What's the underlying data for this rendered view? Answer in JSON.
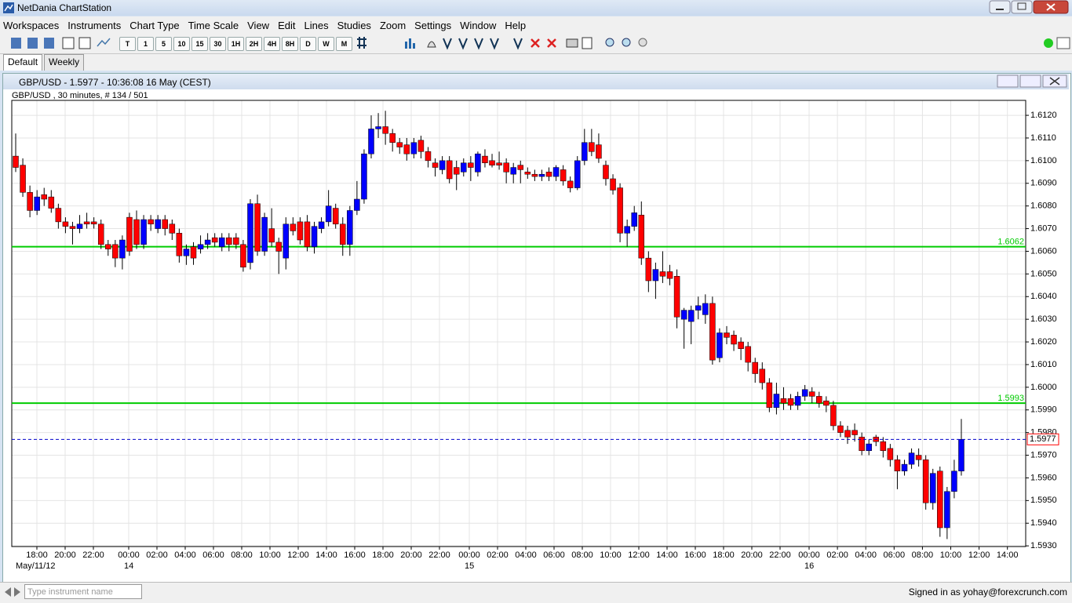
{
  "app": {
    "title": "NetDania ChartStation"
  },
  "menu": [
    "Workspaces",
    "Instruments",
    "Chart Type",
    "Time Scale",
    "View",
    "Edit",
    "Lines",
    "Studies",
    "Zoom",
    "Settings",
    "Window",
    "Help"
  ],
  "timeframes": [
    "T",
    "1",
    "5",
    "10",
    "15",
    "30",
    "1H",
    "2H",
    "4H",
    "8H",
    "D",
    "W",
    "M"
  ],
  "tabs": [
    "Default",
    "Weekly"
  ],
  "window_title": "GBP/USD - 1.5977 - 10:36:08  16 May (CEST)",
  "status": {
    "search_placeholder": "Type instrument name",
    "signed_in": "Signed in as yohay@forexcrunch.com"
  },
  "chart_data": {
    "type": "candlestick",
    "title": "GBP/USD , 30 minutes, # 134 / 501",
    "up_color": "#0000ff",
    "down_color": "#ff0000",
    "wick_color": "#000000",
    "grid": true,
    "ylim": [
      1.59297,
      1.61266
    ],
    "yticks": [
      {
        "value": 1.612,
        "label": "1.6120"
      },
      {
        "value": 1.611,
        "label": "1.6110"
      },
      {
        "value": 1.61,
        "label": "1.6100"
      },
      {
        "value": 1.609,
        "label": "1.6090"
      },
      {
        "value": 1.608,
        "label": "1.6080"
      },
      {
        "value": 1.607,
        "label": "1.6070"
      },
      {
        "value": 1.606,
        "label": "1.6060"
      },
      {
        "value": 1.605,
        "label": "1.6050"
      },
      {
        "value": 1.604,
        "label": "1.6040"
      },
      {
        "value": 1.603,
        "label": "1.6030"
      },
      {
        "value": 1.602,
        "label": "1.6020"
      },
      {
        "value": 1.601,
        "label": "1.6010"
      },
      {
        "value": 1.6,
        "label": "1.6000"
      },
      {
        "value": 1.599,
        "label": "1.5990"
      },
      {
        "value": 1.598,
        "label": "1.5980"
      },
      {
        "value": 1.597,
        "label": "1.5970"
      },
      {
        "value": 1.596,
        "label": "1.5960"
      },
      {
        "value": 1.595,
        "label": "1.5950"
      },
      {
        "value": 1.594,
        "label": "1.5940"
      },
      {
        "value": 1.593,
        "label": "1.5930"
      }
    ],
    "levels": [
      {
        "value": 1.6062,
        "color": "#00cc00"
      },
      {
        "value": 1.5993,
        "color": "#00cc00"
      }
    ],
    "last": {
      "value": 1.5977,
      "color": "#0000cc",
      "label_border": "#ff0000"
    },
    "time_labels": [
      "18:00",
      "20:00",
      "22:00",
      "00:00",
      "02:00",
      "04:00",
      "06:00",
      "08:00",
      "10:00",
      "12:00",
      "14:00",
      "16:00",
      "18:00",
      "20:00",
      "22:00",
      "00:00",
      "02:00",
      "04:00",
      "06:00",
      "08:00",
      "10:00",
      "12:00",
      "14:00",
      "16:00",
      "18:00",
      "20:00",
      "22:00",
      "00:00",
      "02:00",
      "04:00",
      "06:00",
      "08:00",
      "10:00",
      "12:00",
      "14:00"
    ],
    "date_labels": [
      "May/11/12",
      "14",
      "15",
      "16"
    ],
    "ohlc": [
      [
        1.6102,
        1.6112,
        1.6095,
        1.6097
      ],
      [
        1.6098,
        1.6101,
        1.6084,
        1.6086
      ],
      [
        1.6086,
        1.6089,
        1.6075,
        1.6078
      ],
      [
        1.6078,
        1.6087,
        1.6076,
        1.6084
      ],
      [
        1.6085,
        1.6088,
        1.608,
        1.6083
      ],
      [
        1.6084,
        1.6087,
        1.6077,
        1.6079
      ],
      [
        1.6079,
        1.6081,
        1.607,
        1.6073
      ],
      [
        1.6073,
        1.6075,
        1.6068,
        1.6071
      ],
      [
        1.6071,
        1.6073,
        1.6063,
        1.607
      ],
      [
        1.607,
        1.6076,
        1.6068,
        1.6072
      ],
      [
        1.6073,
        1.6077,
        1.607,
        1.6072
      ],
      [
        1.6073,
        1.6075,
        1.607,
        1.6072
      ],
      [
        1.6072,
        1.6074,
        1.6061,
        1.6063
      ],
      [
        1.6063,
        1.6065,
        1.6058,
        1.6061
      ],
      [
        1.6063,
        1.6065,
        1.6053,
        1.6057
      ],
      [
        1.6057,
        1.6067,
        1.6052,
        1.6065
      ],
      [
        1.6075,
        1.6077,
        1.6058,
        1.606
      ],
      [
        1.6074,
        1.6078,
        1.6061,
        1.6063
      ],
      [
        1.6063,
        1.6076,
        1.6061,
        1.6074
      ],
      [
        1.6074,
        1.6076,
        1.6069,
        1.6072
      ],
      [
        1.607,
        1.6076,
        1.6068,
        1.6074
      ],
      [
        1.6074,
        1.6076,
        1.6067,
        1.607
      ],
      [
        1.6072,
        1.6074,
        1.6065,
        1.6068
      ],
      [
        1.6068,
        1.607,
        1.6055,
        1.6058
      ],
      [
        1.6058,
        1.6063,
        1.6054,
        1.6061
      ],
      [
        1.6062,
        1.6064,
        1.6054,
        1.6057
      ],
      [
        1.6061,
        1.6067,
        1.6059,
        1.6063
      ],
      [
        1.6063,
        1.6068,
        1.6061,
        1.6065
      ],
      [
        1.6066,
        1.6068,
        1.6062,
        1.6064
      ],
      [
        1.6062,
        1.6068,
        1.606,
        1.6066
      ],
      [
        1.6066,
        1.6068,
        1.606,
        1.6063
      ],
      [
        1.6066,
        1.6068,
        1.6061,
        1.6063
      ],
      [
        1.6063,
        1.6065,
        1.6051,
        1.6053
      ],
      [
        1.6055,
        1.6083,
        1.6052,
        1.6081
      ],
      [
        1.6081,
        1.6085,
        1.6058,
        1.606
      ],
      [
        1.606,
        1.6077,
        1.6058,
        1.6075
      ],
      [
        1.607,
        1.6079,
        1.6062,
        1.6064
      ],
      [
        1.6064,
        1.6066,
        1.605,
        1.606
      ],
      [
        1.6057,
        1.6075,
        1.6052,
        1.6072
      ],
      [
        1.6072,
        1.6075,
        1.6067,
        1.6069
      ],
      [
        1.6073,
        1.6075,
        1.6063,
        1.6065
      ],
      [
        1.6073,
        1.6076,
        1.606,
        1.6062
      ],
      [
        1.6062,
        1.6073,
        1.6059,
        1.6071
      ],
      [
        1.607,
        1.6075,
        1.6068,
        1.6073
      ],
      [
        1.6073,
        1.6087,
        1.6071,
        1.608
      ],
      [
        1.6079,
        1.6081,
        1.607,
        1.6072
      ],
      [
        1.6072,
        1.6075,
        1.6058,
        1.6063
      ],
      [
        1.6063,
        1.608,
        1.6058,
        1.6078
      ],
      [
        1.6078,
        1.6091,
        1.6076,
        1.6083
      ],
      [
        1.6083,
        1.6105,
        1.6081,
        1.6103
      ],
      [
        1.6103,
        1.612,
        1.6101,
        1.6114
      ],
      [
        1.6114,
        1.6121,
        1.611,
        1.6115
      ],
      [
        1.6115,
        1.6122,
        1.6107,
        1.6112
      ],
      [
        1.6112,
        1.6114,
        1.6104,
        1.6108
      ],
      [
        1.6108,
        1.611,
        1.6103,
        1.6106
      ],
      [
        1.6107,
        1.611,
        1.61,
        1.6103
      ],
      [
        1.6103,
        1.611,
        1.6101,
        1.6108
      ],
      [
        1.6109,
        1.6111,
        1.6101,
        1.6104
      ],
      [
        1.6104,
        1.6106,
        1.6097,
        1.61
      ],
      [
        1.6099,
        1.6101,
        1.6093,
        1.6097
      ],
      [
        1.6096,
        1.6102,
        1.6094,
        1.61
      ],
      [
        1.61,
        1.6102,
        1.609,
        1.6092
      ],
      [
        1.6097,
        1.61,
        1.6087,
        1.6094
      ],
      [
        1.6095,
        1.6101,
        1.6093,
        1.6099
      ],
      [
        1.6099,
        1.6102,
        1.6091,
        1.6097
      ],
      [
        1.6095,
        1.6104,
        1.6093,
        1.6103
      ],
      [
        1.6102,
        1.6105,
        1.6097,
        1.6099
      ],
      [
        1.61,
        1.6103,
        1.6097,
        1.6098
      ],
      [
        1.6099,
        1.6104,
        1.6096,
        1.6098
      ],
      [
        1.6099,
        1.6101,
        1.609,
        1.6095
      ],
      [
        1.6094,
        1.6099,
        1.609,
        1.6097
      ],
      [
        1.6098,
        1.61,
        1.609,
        1.6096
      ],
      [
        1.6095,
        1.6097,
        1.6092,
        1.6094
      ],
      [
        1.6094,
        1.6096,
        1.6091,
        1.6093
      ],
      [
        1.6093,
        1.6096,
        1.6091,
        1.6094
      ],
      [
        1.6095,
        1.6097,
        1.6091,
        1.6093
      ],
      [
        1.6093,
        1.6098,
        1.6091,
        1.6097
      ],
      [
        1.6096,
        1.6098,
        1.6089,
        1.6091
      ],
      [
        1.6091,
        1.6093,
        1.6086,
        1.6088
      ],
      [
        1.6088,
        1.6102,
        1.6087,
        1.61
      ],
      [
        1.61,
        1.6114,
        1.6098,
        1.6108
      ],
      [
        1.6108,
        1.6114,
        1.6102,
        1.6104
      ],
      [
        1.6107,
        1.6112,
        1.6099,
        1.6101
      ],
      [
        1.6098,
        1.61,
        1.6089,
        1.6092
      ],
      [
        1.6092,
        1.6094,
        1.6085,
        1.6087
      ],
      [
        1.6088,
        1.609,
        1.6064,
        1.6068
      ],
      [
        1.6068,
        1.6074,
        1.6062,
        1.6071
      ],
      [
        1.6071,
        1.608,
        1.6069,
        1.6077
      ],
      [
        1.6076,
        1.6082,
        1.6054,
        1.6057
      ],
      [
        1.6057,
        1.606,
        1.6042,
        1.6047
      ],
      [
        1.6047,
        1.6055,
        1.6039,
        1.6052
      ],
      [
        1.6051,
        1.606,
        1.6046,
        1.6049
      ],
      [
        1.6051,
        1.6054,
        1.6045,
        1.6048
      ],
      [
        1.6049,
        1.6052,
        1.6026,
        1.6031
      ],
      [
        1.603,
        1.6035,
        1.6017,
        1.6034
      ],
      [
        1.6029,
        1.6036,
        1.6019,
        1.6034
      ],
      [
        1.6034,
        1.604,
        1.603,
        1.6036
      ],
      [
        1.6032,
        1.6041,
        1.6028,
        1.6037
      ],
      [
        1.6037,
        1.604,
        1.601,
        1.6012
      ],
      [
        1.6013,
        1.6026,
        1.6011,
        1.6024
      ],
      [
        1.6024,
        1.6027,
        1.6019,
        1.6022
      ],
      [
        1.6023,
        1.6025,
        1.6016,
        1.6019
      ],
      [
        1.602,
        1.6022,
        1.6012,
        1.6017
      ],
      [
        1.6018,
        1.602,
        1.6007,
        1.6011
      ],
      [
        1.6011,
        1.6013,
        1.6002,
        1.6006
      ],
      [
        1.6008,
        1.6011,
        1.5999,
        1.6002
      ],
      [
        1.6002,
        1.6004,
        1.5989,
        1.5991
      ],
      [
        1.5991,
        1.6002,
        1.5988,
        1.5997
      ],
      [
        1.5995,
        1.6,
        1.599,
        1.5993
      ],
      [
        1.5995,
        1.5997,
        1.599,
        1.5992
      ],
      [
        1.5992,
        1.5998,
        1.599,
        1.5996
      ],
      [
        1.5996,
        1.6001,
        1.5994,
        1.5999
      ],
      [
        1.5998,
        1.6,
        1.5993,
        1.5996
      ],
      [
        1.5996,
        1.5998,
        1.5991,
        1.5993
      ],
      [
        1.5994,
        1.5996,
        1.5989,
        1.5992
      ],
      [
        1.5992,
        1.5994,
        1.5981,
        1.5983
      ],
      [
        1.5983,
        1.5985,
        1.5978,
        1.598
      ],
      [
        1.5981,
        1.5983,
        1.5975,
        1.5978
      ],
      [
        1.5981,
        1.5984,
        1.5976,
        1.5979
      ],
      [
        1.5978,
        1.598,
        1.597,
        1.5972
      ],
      [
        1.5972,
        1.5977,
        1.597,
        1.5975
      ],
      [
        1.5978,
        1.5979,
        1.5974,
        1.5976
      ],
      [
        1.5976,
        1.5978,
        1.5969,
        1.5972
      ],
      [
        1.5973,
        1.5975,
        1.5965,
        1.5968
      ],
      [
        1.5968,
        1.597,
        1.5955,
        1.5963
      ],
      [
        1.5963,
        1.5968,
        1.5961,
        1.5966
      ],
      [
        1.5966,
        1.5973,
        1.5964,
        1.5971
      ],
      [
        1.597,
        1.5973,
        1.5965,
        1.5968
      ],
      [
        1.5968,
        1.597,
        1.5946,
        1.5949
      ],
      [
        1.5949,
        1.5964,
        1.5946,
        1.5962
      ],
      [
        1.5963,
        1.5965,
        1.5934,
        1.5938
      ],
      [
        1.5938,
        1.5956,
        1.5933,
        1.5954
      ],
      [
        1.5954,
        1.5968,
        1.5951,
        1.5963
      ],
      [
        1.5963,
        1.5986,
        1.5961,
        1.5977
      ]
    ]
  }
}
